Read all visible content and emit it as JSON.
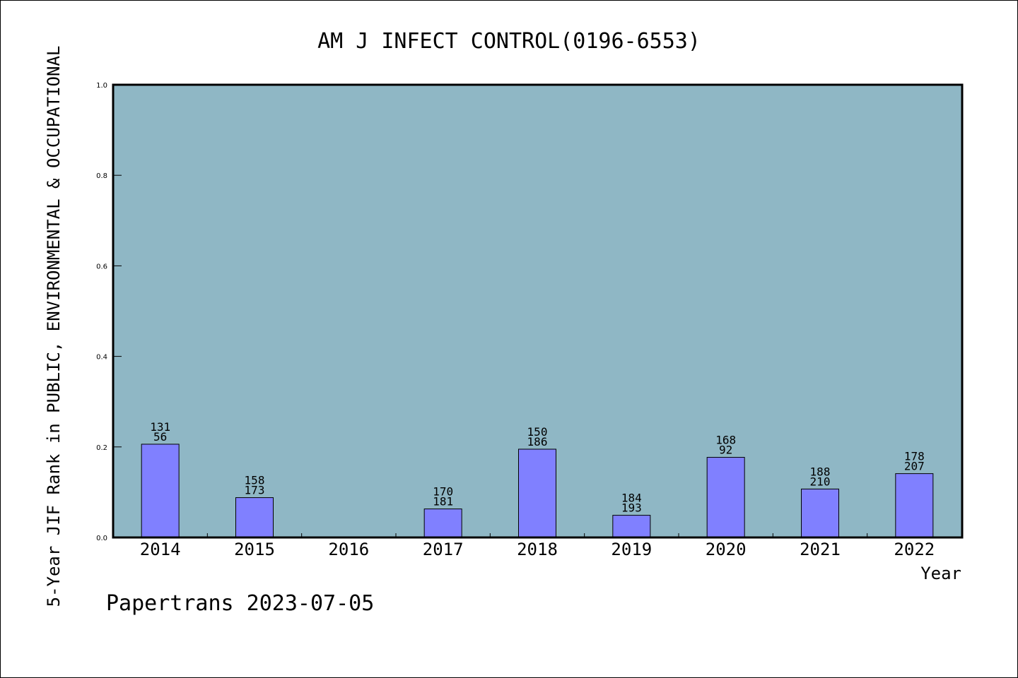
{
  "chart_data": {
    "type": "bar",
    "title": "AM J INFECT CONTROL(0196-6553)",
    "ylabel": "5-Year JIF Rank in PUBLIC, ENVIRONMENTAL & OCCUPATIONAL",
    "xlabel": "Year",
    "ylim": [
      0,
      1.0
    ],
    "yticks": [
      "0.0",
      "0.2",
      "0.4",
      "0.6",
      "0.8",
      "1.0"
    ],
    "categories": [
      "2014",
      "2015",
      "2016",
      "2017",
      "2018",
      "2019",
      "2020",
      "2021",
      "2022"
    ],
    "values": [
      0.206,
      0.088,
      null,
      0.063,
      0.195,
      0.049,
      0.177,
      0.107,
      0.141
    ],
    "labels_top": [
      "131",
      "158",
      "",
      "170",
      "150",
      "184",
      "168",
      "188",
      "178"
    ],
    "labels_bottom": [
      "56",
      "173",
      "",
      "181",
      "186",
      "193",
      "92",
      "210",
      "207"
    ],
    "grid": false,
    "colors": {
      "plot_background": "#8fb7c5",
      "bar_fill": "#8080ff",
      "bar_stroke": "#000000",
      "frame": "#000000"
    }
  },
  "footer": "Papertrans 2023-07-05"
}
